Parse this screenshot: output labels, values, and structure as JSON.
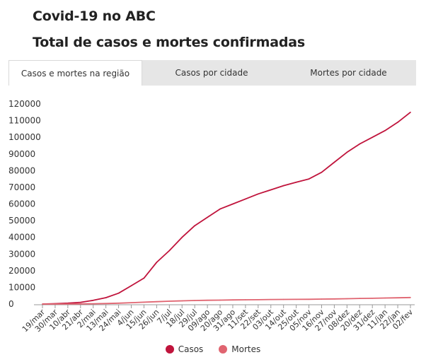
{
  "header": {
    "title": "Covid-19 no ABC",
    "subtitle": "Total de casos e mortes confirmadas"
  },
  "tabs": [
    {
      "label": "Casos e mortes na região",
      "active": true
    },
    {
      "label": "Casos por cidade",
      "active": false
    },
    {
      "label": "Mortes por cidade",
      "active": false
    }
  ],
  "colors": {
    "casos": "#c0143c",
    "mortes": "#e06470",
    "grid": "#e6e6e6",
    "axis": "#555555"
  },
  "chart_data": {
    "type": "line",
    "title": "",
    "xlabel": "",
    "ylabel": "",
    "ylim": [
      0,
      120000
    ],
    "yticks": [
      0,
      10000,
      20000,
      30000,
      40000,
      50000,
      60000,
      70000,
      80000,
      90000,
      100000,
      110000,
      120000
    ],
    "categories": [
      "19/mar",
      "30/mar",
      "10/abr",
      "21/abr",
      "2/mai",
      "13/mai",
      "24/mai",
      "4/jun",
      "15/jun",
      "26/jun",
      "7/jul",
      "18/jul",
      "29/jul",
      "09/ago",
      "20/ago",
      "31/ago",
      "11/set",
      "22/set",
      "03/out",
      "14/out",
      "25/out",
      "05/nov",
      "16/nov",
      "27/nov",
      "08/dez",
      "20/dez",
      "31/dez",
      "11/jan",
      "22/jan",
      "02/fev"
    ],
    "series": [
      {
        "name": "Casos",
        "values": [
          0,
          200,
          500,
          1000,
          2200,
          3800,
          6500,
          11000,
          15500,
          25000,
          32000,
          40000,
          47000,
          52000,
          57000,
          60000,
          63000,
          66000,
          68500,
          71000,
          73000,
          75000,
          79000,
          85000,
          91000,
          96000,
          100000,
          104000,
          109000,
          115000
        ]
      },
      {
        "name": "Mortes",
        "values": [
          0,
          10,
          30,
          70,
          150,
          300,
          500,
          800,
          1100,
          1400,
          1700,
          1900,
          2100,
          2250,
          2350,
          2450,
          2550,
          2600,
          2700,
          2750,
          2800,
          2850,
          2950,
          3050,
          3200,
          3350,
          3450,
          3600,
          3750,
          3900
        ]
      }
    ],
    "legend_position": "bottom",
    "grid": false
  }
}
